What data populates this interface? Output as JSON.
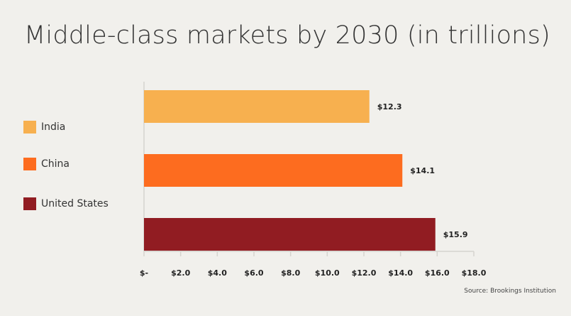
{
  "chart_data": {
    "type": "bar",
    "orientation": "horizontal",
    "title": "Middle-class markets by 2030 (in trillions)",
    "categories": [
      "India",
      "China",
      "United States"
    ],
    "values": [
      12.3,
      14.1,
      15.9
    ],
    "value_labels": [
      "$12.3",
      "$14.1",
      "$15.9"
    ],
    "colors": [
      "#f7b04f",
      "#fd6c1f",
      "#911c22"
    ],
    "x_ticks": [
      0,
      2,
      4,
      6,
      8,
      10,
      12,
      14,
      16,
      18
    ],
    "x_tick_labels": [
      "$-",
      "$2.0",
      "$4.0",
      "$6.0",
      "$8.0",
      "$10.0",
      "$12.0",
      "$14.0",
      "$16.0",
      "$18.0"
    ],
    "xlim": [
      0,
      18
    ],
    "xlabel": "",
    "ylabel": "",
    "grid": false,
    "legend_position": "left",
    "legend": [
      {
        "label": "India",
        "color": "#f7b04f"
      },
      {
        "label": "China",
        "color": "#fd6c1f"
      },
      {
        "label": "United States",
        "color": "#911c22"
      }
    ]
  },
  "source": "Source: Brookings Institution"
}
